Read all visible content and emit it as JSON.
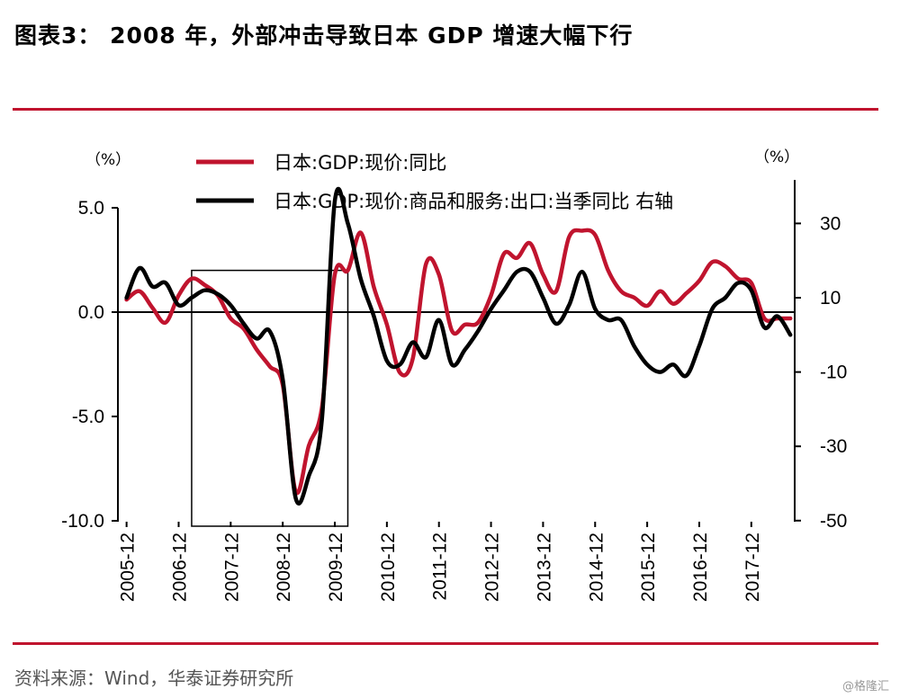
{
  "header": {
    "title": "图表3：  2008 年，外部冲击导致日本 GDP 增速大幅下行"
  },
  "footer": {
    "source": "资料来源：Wind，华泰证券研究所",
    "watermark": "@格隆汇"
  },
  "colors": {
    "accent": "#c0142e",
    "series1": "#c0142e",
    "series2": "#000000"
  },
  "chart_data": {
    "type": "line",
    "title": "",
    "left_unit": "（%）",
    "right_unit": "（%）",
    "x_ticks": [
      "2005-12",
      "2006-12",
      "2007-12",
      "2008-12",
      "2009-12",
      "2010-12",
      "2011-12",
      "2012-12",
      "2013-12",
      "2014-12",
      "2015-12",
      "2016-12",
      "2017-12"
    ],
    "y_left": {
      "ticks": [
        "5.0",
        "0.0",
        "-5.0",
        "-10.0"
      ],
      "range": [
        -10,
        5
      ]
    },
    "y_right": {
      "ticks": [
        "30",
        "10",
        "-10",
        "-30",
        "-50"
      ],
      "range": [
        -50,
        40
      ]
    },
    "legend_position": "top",
    "highlight_box": {
      "x_range": [
        "2007-03",
        "2010-03"
      ],
      "y_range": [
        -10,
        2
      ]
    },
    "series": [
      {
        "name": "日本:GDP:现价:同比",
        "axis": "left",
        "color": "#c0142e",
        "x": [
          "2005-12",
          "2006-03",
          "2006-06",
          "2006-09",
          "2006-12",
          "2007-03",
          "2007-06",
          "2007-09",
          "2007-12",
          "2008-03",
          "2008-06",
          "2008-09",
          "2008-12",
          "2009-03",
          "2009-06",
          "2009-09",
          "2009-12",
          "2010-03",
          "2010-06",
          "2010-09",
          "2010-12",
          "2011-03",
          "2011-06",
          "2011-09",
          "2011-12",
          "2012-03",
          "2012-06",
          "2012-09",
          "2012-12",
          "2013-03",
          "2013-06",
          "2013-09",
          "2013-12",
          "2014-03",
          "2014-06",
          "2014-09",
          "2014-12",
          "2015-03",
          "2015-06",
          "2015-09",
          "2015-12",
          "2016-03",
          "2016-06",
          "2016-09",
          "2016-12",
          "2017-03",
          "2017-06",
          "2017-09",
          "2017-12",
          "2018-03",
          "2018-06",
          "2018-09"
        ],
        "values": [
          0.6,
          1.0,
          0.2,
          -0.5,
          0.8,
          1.6,
          1.3,
          0.8,
          -0.3,
          -0.8,
          -1.8,
          -2.6,
          -3.5,
          -8.6,
          -6.4,
          -4.6,
          1.8,
          2.0,
          3.8,
          1.2,
          -0.6,
          -2.9,
          -2.2,
          2.3,
          1.8,
          -0.9,
          -0.6,
          -0.5,
          0.8,
          2.8,
          2.6,
          3.3,
          1.8,
          1.0,
          3.6,
          3.9,
          3.7,
          2.0,
          1.0,
          0.7,
          0.3,
          1.0,
          0.4,
          0.9,
          1.5,
          2.4,
          2.2,
          1.6,
          1.4,
          -0.3,
          -0.3,
          -0.3
        ]
      },
      {
        "name": "日本:GDP:现价:商品和服务:出口:当季同比 右轴",
        "axis": "right",
        "color": "#000000",
        "x": [
          "2005-12",
          "2006-03",
          "2006-06",
          "2006-09",
          "2006-12",
          "2007-03",
          "2007-06",
          "2007-09",
          "2007-12",
          "2008-03",
          "2008-06",
          "2008-09",
          "2008-12",
          "2009-03",
          "2009-06",
          "2009-09",
          "2009-12",
          "2010-03",
          "2010-06",
          "2010-09",
          "2010-12",
          "2011-03",
          "2011-06",
          "2011-09",
          "2011-12",
          "2012-03",
          "2012-06",
          "2012-09",
          "2012-12",
          "2013-03",
          "2013-06",
          "2013-09",
          "2013-12",
          "2014-03",
          "2014-06",
          "2014-09",
          "2014-12",
          "2015-03",
          "2015-06",
          "2015-09",
          "2015-12",
          "2016-03",
          "2016-06",
          "2016-09",
          "2016-12",
          "2017-03",
          "2017-06",
          "2017-09",
          "2017-12",
          "2018-03",
          "2018-06",
          "2018-09"
        ],
        "values": [
          10,
          18,
          13,
          14,
          8,
          10,
          12,
          11,
          8,
          3,
          -1,
          1,
          -12,
          -44,
          -38,
          -23,
          36,
          30,
          15,
          5,
          -7,
          -8,
          -2,
          -6,
          4,
          -8,
          -4,
          1,
          7,
          12,
          17,
          17,
          10,
          3,
          8,
          17,
          7,
          4,
          4,
          -3,
          -8,
          -10,
          -8,
          -11,
          -3,
          7,
          10,
          14,
          12,
          2,
          5,
          0
        ]
      }
    ]
  }
}
